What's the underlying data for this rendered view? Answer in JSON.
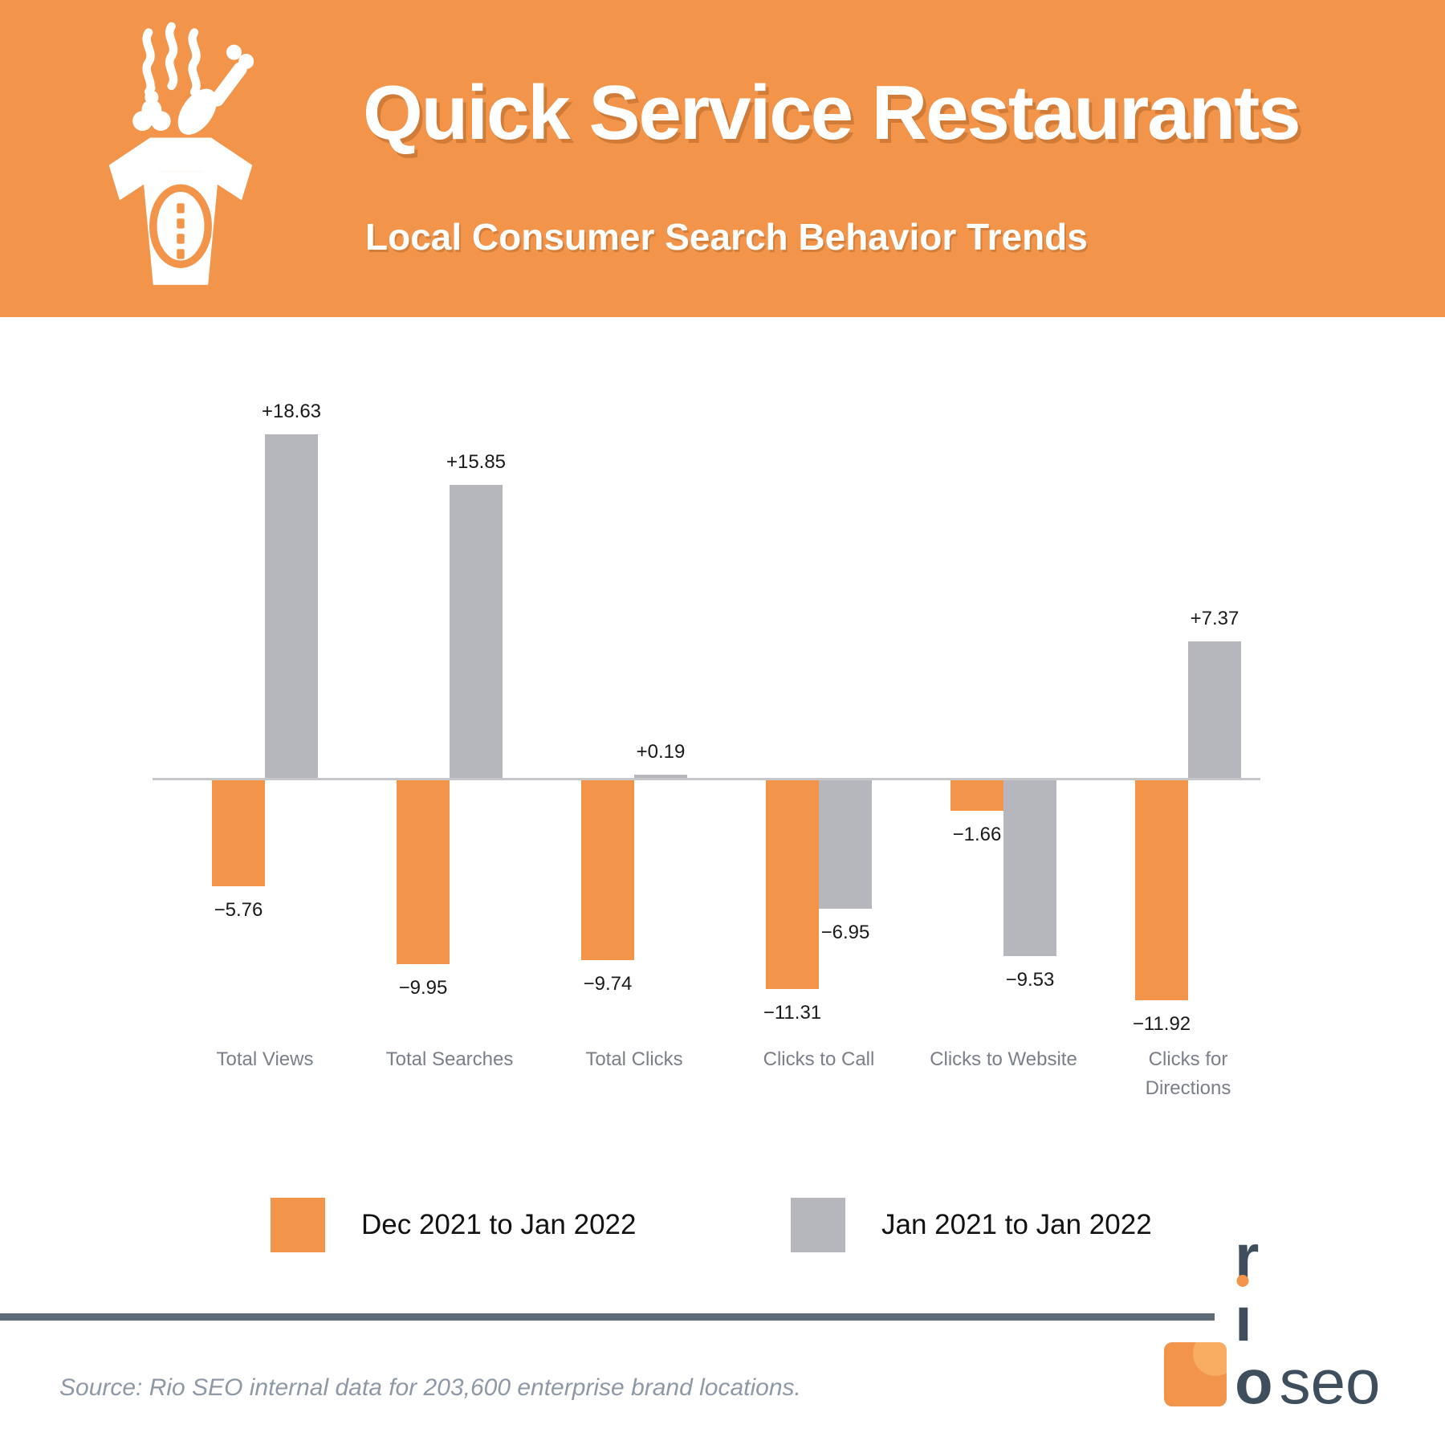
{
  "header": {
    "title": "Quick Service Restaurants",
    "subtitle": "Local Consumer Search Behavior Trends",
    "bg_color": "#F2954B",
    "icon": "takeout-food-icon"
  },
  "chart_data": {
    "type": "bar",
    "title": "Quick Service Restaurants — Local Consumer Search Behavior Trends",
    "categories": [
      "Total Views",
      "Total Searches",
      "Total Clicks",
      "Clicks to Call",
      "Clicks to Website",
      "Clicks for Directions"
    ],
    "series": [
      {
        "name": "Dec 2021 to Jan 2022",
        "color": "#F2954B",
        "values": [
          -5.76,
          -9.95,
          -9.74,
          -11.31,
          -1.66,
          -11.92
        ],
        "labels": [
          "−5.76",
          "−9.95",
          "−9.74",
          "−11.31",
          "−1.66",
          "−11.92"
        ]
      },
      {
        "name": "Jan 2021 to Jan 2022",
        "color": "#B5B7BD",
        "values": [
          18.63,
          15.85,
          0.19,
          -6.95,
          -9.53,
          7.37
        ],
        "labels": [
          "+18.63",
          "+15.85",
          "+0.19",
          "−6.95",
          "−9.53",
          "+7.37"
        ]
      }
    ],
    "ylim": [
      -13.5,
      20.5
    ],
    "grid": false,
    "baseline": 0,
    "legend_position": "bottom",
    "value_label_color": "#191919",
    "category_label_color": "#7A7F8A",
    "axis_line_color": "#C6C7CB"
  },
  "footer": {
    "source": "Source: Rio SEO internal data for 203,600 enterprise brand locations.",
    "divider_color": "#5D6B77",
    "logo": {
      "r": "r",
      "i": "ı",
      "o": "o",
      "seo": "seo"
    }
  }
}
